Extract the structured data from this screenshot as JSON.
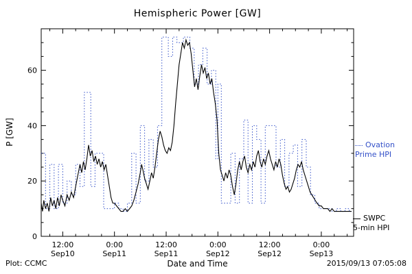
{
  "footer": {
    "left": "Plot: CCMC",
    "right": "2015/09/13 07:05:08"
  },
  "legend": {
    "entries": [
      {
        "name": "ovation",
        "lines": [
          "Ovation",
          "Prime HPI"
        ],
        "color": "#3350c8",
        "style": "dotted"
      },
      {
        "name": "swpc",
        "lines": [
          "SWPC",
          "5-min HPI"
        ],
        "color": "#000000",
        "style": "solid"
      }
    ]
  },
  "chart_data": {
    "type": "line",
    "title": "Hemispheric Power [GW]",
    "xlabel": "Date and Time",
    "ylabel": "P [GW]",
    "xlim": [
      7,
      79.5
    ],
    "ylim": [
      0,
      75
    ],
    "x_units": "hours since 2015-09-10 00:00",
    "xminor": 3,
    "yminor": 5,
    "grid": false,
    "legend_position": "right-margin",
    "xticks": [
      {
        "pos": 12,
        "label": "12:00",
        "sub": "Sep10"
      },
      {
        "pos": 24,
        "label": "0:00",
        "sub": "Sep11"
      },
      {
        "pos": 36,
        "label": "12:00",
        "sub": "Sep11"
      },
      {
        "pos": 48,
        "label": "0:00",
        "sub": "Sep12"
      },
      {
        "pos": 60,
        "label": "12:00",
        "sub": "Sep12"
      },
      {
        "pos": 72,
        "label": "0:00",
        "sub": "Sep13"
      }
    ],
    "yticks": [
      {
        "pos": 0,
        "label": "0"
      },
      {
        "pos": 20,
        "label": "20"
      },
      {
        "pos": 40,
        "label": "40"
      },
      {
        "pos": 60,
        "label": "60"
      }
    ],
    "series": [
      {
        "name": "ovation-prime-hpi",
        "color": "#3350c8",
        "dotted": true,
        "step": true,
        "width": 1,
        "points": [
          [
            7,
            30
          ],
          [
            8,
            10
          ],
          [
            9,
            26
          ],
          [
            10,
            10
          ],
          [
            11,
            26
          ],
          [
            12,
            12
          ],
          [
            13,
            20
          ],
          [
            14,
            15
          ],
          [
            15,
            26
          ],
          [
            16,
            18
          ],
          [
            17,
            52
          ],
          [
            18.5,
            18
          ],
          [
            19.5,
            30
          ],
          [
            21,
            30
          ],
          [
            21.5,
            10
          ],
          [
            23,
            10
          ],
          [
            24,
            12
          ],
          [
            25,
            10
          ],
          [
            26,
            9
          ],
          [
            27,
            12
          ],
          [
            28,
            30
          ],
          [
            29,
            12
          ],
          [
            30,
            40
          ],
          [
            31,
            20
          ],
          [
            32,
            35
          ],
          [
            33,
            25
          ],
          [
            34,
            40
          ],
          [
            35,
            72
          ],
          [
            36.5,
            65
          ],
          [
            37.5,
            72
          ],
          [
            38.5,
            70
          ],
          [
            40,
            72
          ],
          [
            41.5,
            68
          ],
          [
            42.5,
            55
          ],
          [
            43.5,
            62
          ],
          [
            44.5,
            68
          ],
          [
            45.5,
            55
          ],
          [
            46.5,
            60
          ],
          [
            47.5,
            28
          ],
          [
            48,
            55
          ],
          [
            48.8,
            12
          ],
          [
            50,
            12
          ],
          [
            51,
            30
          ],
          [
            52,
            12
          ],
          [
            53,
            28
          ],
          [
            54,
            42
          ],
          [
            55,
            12
          ],
          [
            56,
            40
          ],
          [
            57,
            35
          ],
          [
            58,
            12
          ],
          [
            59,
            40
          ],
          [
            60.5,
            40
          ],
          [
            61.5,
            25
          ],
          [
            62.5,
            35
          ],
          [
            63.5,
            18
          ],
          [
            64.5,
            30
          ],
          [
            65.5,
            33
          ],
          [
            66.5,
            18
          ],
          [
            67.5,
            35
          ],
          [
            68.5,
            25
          ],
          [
            69.5,
            15
          ],
          [
            70.5,
            12
          ],
          [
            71.5,
            10
          ],
          [
            72.5,
            10
          ],
          [
            73.5,
            10
          ],
          [
            74.5,
            9
          ],
          [
            75.5,
            10
          ],
          [
            76.5,
            9
          ],
          [
            77.5,
            10
          ],
          [
            78.5,
            9
          ],
          [
            79,
            9
          ]
        ]
      },
      {
        "name": "swpc-5min-hpi",
        "color": "#000000",
        "dotted": false,
        "step": false,
        "width": 1.1,
        "points": [
          [
            7,
            12
          ],
          [
            7.3,
            9
          ],
          [
            7.6,
            13
          ],
          [
            8,
            10
          ],
          [
            8.4,
            12
          ],
          [
            8.8,
            9
          ],
          [
            9.2,
            14
          ],
          [
            9.6,
            11
          ],
          [
            10,
            13
          ],
          [
            10.4,
            10
          ],
          [
            10.8,
            14
          ],
          [
            11.2,
            11
          ],
          [
            11.6,
            15
          ],
          [
            12,
            13
          ],
          [
            12.5,
            11
          ],
          [
            13,
            15
          ],
          [
            13.5,
            13
          ],
          [
            14,
            16
          ],
          [
            14.5,
            14
          ],
          [
            15,
            18
          ],
          [
            15.5,
            22
          ],
          [
            16,
            26
          ],
          [
            16.4,
            23
          ],
          [
            16.8,
            27
          ],
          [
            17.2,
            24
          ],
          [
            17.6,
            28
          ],
          [
            18,
            33
          ],
          [
            18.4,
            29
          ],
          [
            18.8,
            31
          ],
          [
            19.2,
            27
          ],
          [
            19.6,
            29
          ],
          [
            20,
            26
          ],
          [
            20.4,
            28
          ],
          [
            20.8,
            25
          ],
          [
            21.2,
            27
          ],
          [
            21.6,
            24
          ],
          [
            22,
            26
          ],
          [
            22.4,
            22
          ],
          [
            22.8,
            18
          ],
          [
            23.2,
            14
          ],
          [
            23.6,
            12
          ],
          [
            24,
            12
          ],
          [
            24.5,
            11
          ],
          [
            25,
            10
          ],
          [
            25.5,
            9
          ],
          [
            26,
            9
          ],
          [
            26.5,
            10
          ],
          [
            27,
            9
          ],
          [
            27.5,
            10
          ],
          [
            28,
            11
          ],
          [
            28.5,
            13
          ],
          [
            29,
            16
          ],
          [
            29.5,
            19
          ],
          [
            30,
            23
          ],
          [
            30.3,
            26
          ],
          [
            30.6,
            24
          ],
          [
            31,
            21
          ],
          [
            31.4,
            19
          ],
          [
            31.8,
            17
          ],
          [
            32.2,
            20
          ],
          [
            32.6,
            23
          ],
          [
            33,
            21
          ],
          [
            33.4,
            25
          ],
          [
            33.8,
            30
          ],
          [
            34.2,
            35
          ],
          [
            34.6,
            38
          ],
          [
            35,
            36
          ],
          [
            35.4,
            33
          ],
          [
            35.8,
            31
          ],
          [
            36.2,
            30
          ],
          [
            36.6,
            32
          ],
          [
            37,
            31
          ],
          [
            37.4,
            34
          ],
          [
            37.8,
            40
          ],
          [
            38.2,
            48
          ],
          [
            38.6,
            55
          ],
          [
            39,
            62
          ],
          [
            39.4,
            66
          ],
          [
            39.8,
            70
          ],
          [
            40.2,
            68
          ],
          [
            40.6,
            71
          ],
          [
            41,
            69
          ],
          [
            41.4,
            70
          ],
          [
            41.8,
            66
          ],
          [
            42.2,
            60
          ],
          [
            42.6,
            54
          ],
          [
            43,
            57
          ],
          [
            43.4,
            53
          ],
          [
            43.8,
            58
          ],
          [
            44.2,
            62
          ],
          [
            44.6,
            59
          ],
          [
            45,
            61
          ],
          [
            45.4,
            57
          ],
          [
            45.8,
            59
          ],
          [
            46.2,
            55
          ],
          [
            46.6,
            57
          ],
          [
            47,
            52
          ],
          [
            47.4,
            48
          ],
          [
            47.8,
            42
          ],
          [
            48.2,
            30
          ],
          [
            48.6,
            24
          ],
          [
            49,
            22
          ],
          [
            49.4,
            20
          ],
          [
            49.8,
            23
          ],
          [
            50.2,
            21
          ],
          [
            50.6,
            24
          ],
          [
            51,
            22
          ],
          [
            51.4,
            18
          ],
          [
            51.8,
            15
          ],
          [
            52.2,
            19
          ],
          [
            52.6,
            24
          ],
          [
            53,
            27
          ],
          [
            53.4,
            24
          ],
          [
            53.8,
            27
          ],
          [
            54.2,
            29
          ],
          [
            54.6,
            25
          ],
          [
            55,
            23
          ],
          [
            55.4,
            26
          ],
          [
            55.8,
            24
          ],
          [
            56.2,
            27
          ],
          [
            56.6,
            25
          ],
          [
            57,
            29
          ],
          [
            57.4,
            31
          ],
          [
            57.8,
            27
          ],
          [
            58.2,
            25
          ],
          [
            58.6,
            28
          ],
          [
            59,
            26
          ],
          [
            59.4,
            29
          ],
          [
            59.8,
            31
          ],
          [
            60.2,
            28
          ],
          [
            60.6,
            26
          ],
          [
            61,
            24
          ],
          [
            61.4,
            27
          ],
          [
            61.8,
            25
          ],
          [
            62.2,
            28
          ],
          [
            62.6,
            26
          ],
          [
            63,
            22
          ],
          [
            63.4,
            19
          ],
          [
            63.8,
            17
          ],
          [
            64.2,
            18
          ],
          [
            64.6,
            16
          ],
          [
            65,
            17
          ],
          [
            65.4,
            19
          ],
          [
            65.8,
            21
          ],
          [
            66.2,
            24
          ],
          [
            66.6,
            26
          ],
          [
            67,
            25
          ],
          [
            67.4,
            27
          ],
          [
            67.8,
            24
          ],
          [
            68.2,
            22
          ],
          [
            68.6,
            20
          ],
          [
            69,
            18
          ],
          [
            69.4,
            16
          ],
          [
            69.8,
            15
          ],
          [
            70.2,
            14
          ],
          [
            70.6,
            13
          ],
          [
            71,
            12
          ],
          [
            71.5,
            11
          ],
          [
            72,
            11
          ],
          [
            72.5,
            10
          ],
          [
            73,
            10
          ],
          [
            73.5,
            10
          ],
          [
            74,
            9
          ],
          [
            74.5,
            10
          ],
          [
            75,
            9
          ],
          [
            75.5,
            9
          ],
          [
            76,
            9
          ],
          [
            76.5,
            9
          ],
          [
            77,
            9
          ],
          [
            77.5,
            9
          ],
          [
            78,
            9
          ],
          [
            78.5,
            9
          ],
          [
            79,
            9
          ]
        ]
      }
    ]
  }
}
